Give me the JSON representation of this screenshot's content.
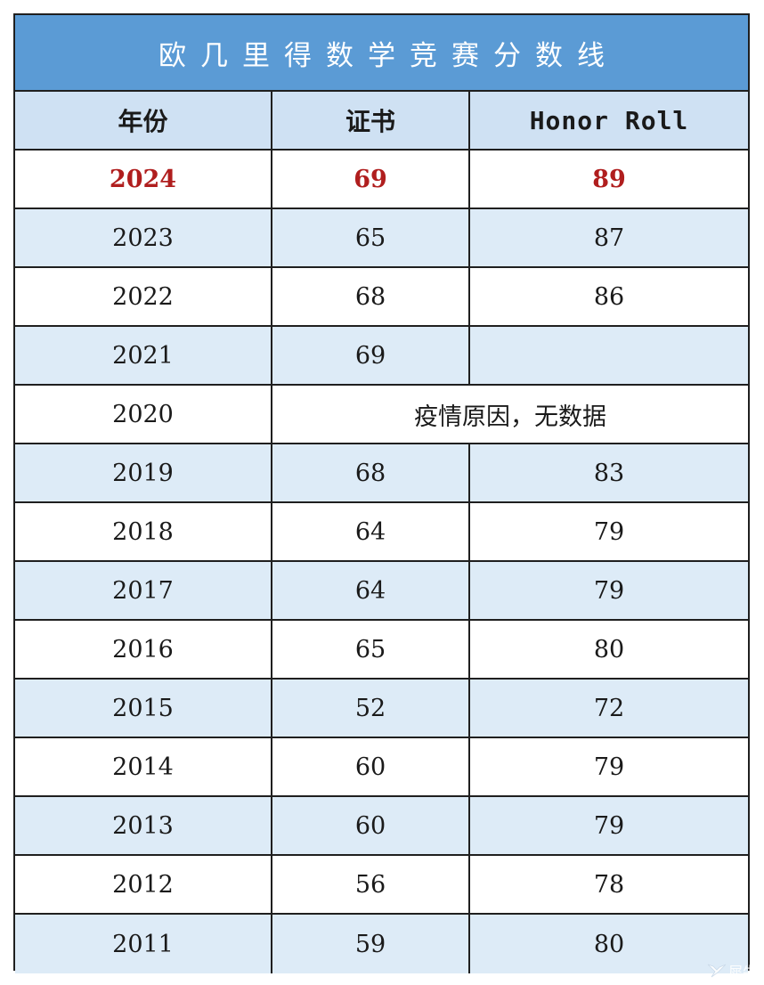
{
  "title": "欧几里得数学竞赛分数线",
  "headers": {
    "year": "年份",
    "certificate": "证书",
    "honor_roll": "Honor Roll"
  },
  "rows": [
    {
      "year": "2024",
      "certificate": "69",
      "honor_roll": "89",
      "highlight": true
    },
    {
      "year": "2023",
      "certificate": "65",
      "honor_roll": "87"
    },
    {
      "year": "2022",
      "certificate": "68",
      "honor_roll": "86"
    },
    {
      "year": "2021",
      "certificate": "69",
      "honor_roll": ""
    },
    {
      "year": "2020",
      "merged_note": "疫情原因，无数据"
    },
    {
      "year": "2019",
      "certificate": "68",
      "honor_roll": "83"
    },
    {
      "year": "2018",
      "certificate": "64",
      "honor_roll": "79"
    },
    {
      "year": "2017",
      "certificate": "64",
      "honor_roll": "79"
    },
    {
      "year": "2016",
      "certificate": "65",
      "honor_roll": "80"
    },
    {
      "year": "2015",
      "certificate": "52",
      "honor_roll": "72"
    },
    {
      "year": "2014",
      "certificate": "60",
      "honor_roll": "79"
    },
    {
      "year": "2013",
      "certificate": "60",
      "honor_roll": "79"
    },
    {
      "year": "2012",
      "certificate": "56",
      "honor_roll": "78"
    },
    {
      "year": "2011",
      "certificate": "59",
      "honor_roll": "80"
    }
  ],
  "colors": {
    "title_bg": "#5b9bd5",
    "header_bg": "#cfe1f3",
    "shade_bg": "#ddebf7",
    "highlight_text": "#b01e1e"
  },
  "watermark": {
    "icon": "brand-logo-icon",
    "text": "犀牛"
  }
}
